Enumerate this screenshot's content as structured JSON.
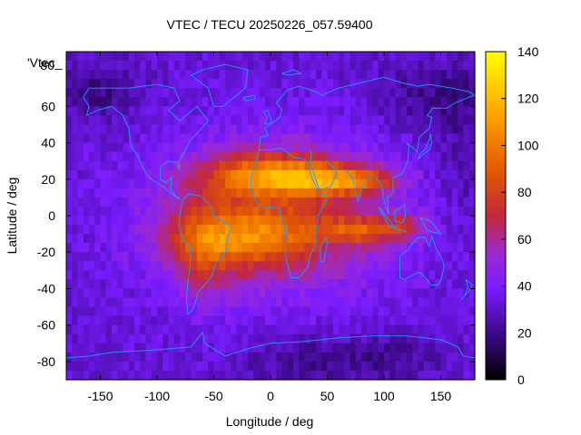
{
  "chart_data": {
    "type": "heatmap",
    "title": "VTEC / TECU 20250226_057.59400",
    "xlabel": "Longitude / deg",
    "ylabel": "Latitude / deg",
    "xlim": [
      -180,
      180
    ],
    "ylim": [
      -90,
      90
    ],
    "xticks": [
      -150,
      -100,
      -50,
      0,
      50,
      100,
      150
    ],
    "yticks": [
      60,
      40,
      20,
      0,
      -20,
      -40,
      -60,
      -80
    ],
    "top_ytick_label": "80",
    "overlay_label": "'Vtec_",
    "colorbar": {
      "min": 0,
      "max": 140,
      "ticks": [
        0,
        20,
        40,
        60,
        80,
        100,
        120,
        140
      ],
      "palette": "black-purple-red-orange-yellow"
    },
    "field_description": "Gridded VTEC map; background 20-40 TECU at high latitudes and over the Pacific, equatorial anomaly crests of about 80-110 TECU near +/-15 deg latitude between roughly -60 and 130 deg longitude, peak about 115 TECU near 0 deg longitude, 25 deg latitude",
    "field_features": [
      {
        "name": "background",
        "value": 33
      },
      {
        "name": "northern-crest-atlantic-africa",
        "lon": -5,
        "lat": 22,
        "value": 115
      },
      {
        "name": "northern-crest-asia",
        "lon": 85,
        "lat": 19,
        "value": 100
      },
      {
        "name": "southern-crest-atlantic",
        "lon": -15,
        "lat": -12,
        "value": 98
      },
      {
        "name": "southern-crest-indian-ocean",
        "lon": 80,
        "lat": -8,
        "value": 92
      },
      {
        "name": "south-america-broad",
        "lon": -55,
        "lat": -15,
        "value": 85
      },
      {
        "name": "north-polar-low",
        "lon": 150,
        "lat": 65,
        "value": 15
      },
      {
        "name": "south-polar-low",
        "lon": 30,
        "lat": -80,
        "value": 15
      }
    ]
  },
  "colors": {
    "coastline": "#1e9bff",
    "frame": "#000000"
  }
}
